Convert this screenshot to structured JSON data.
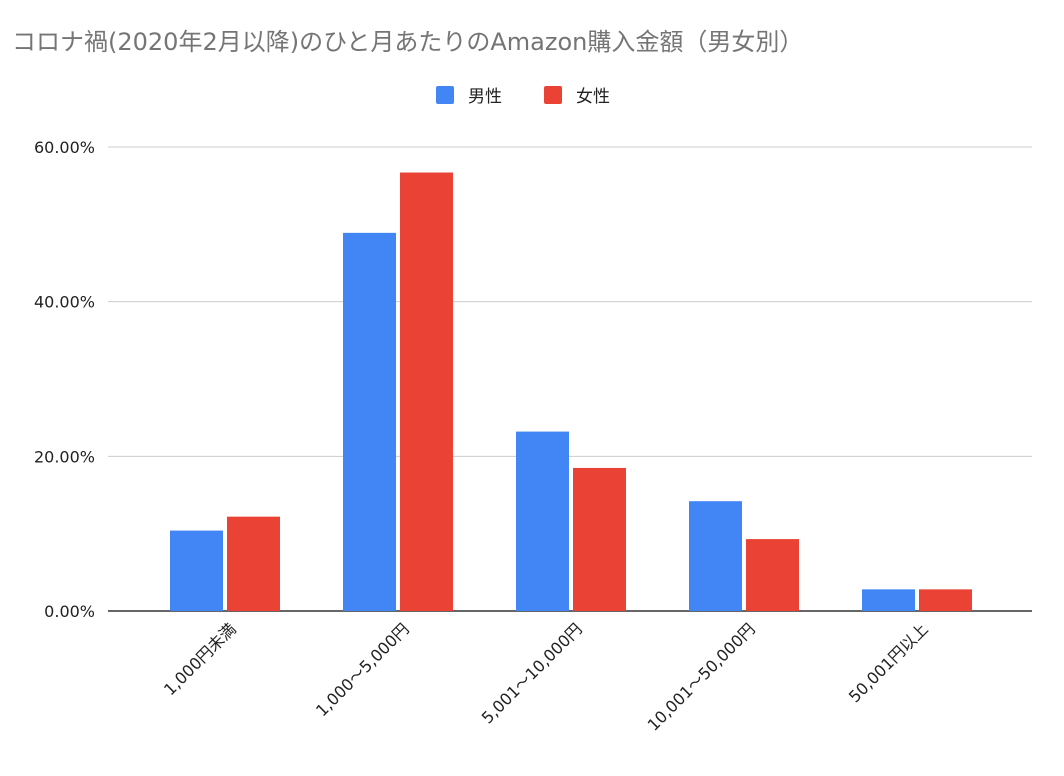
{
  "chart_data": {
    "type": "bar",
    "title": "コロナ禍(2020年2月以降)のひと月あたりのAmazon購入金額（男女別）",
    "categories": [
      "1,000円未満",
      "1,000～5,000円",
      "5,001～10,000円",
      "10,001～50,000円",
      "50,001円以上"
    ],
    "series": [
      {
        "name": "男性",
        "color": "#4285f4",
        "values": [
          10.4,
          48.9,
          23.2,
          14.2,
          2.8
        ]
      },
      {
        "name": "女性",
        "color": "#ea4335",
        "values": [
          12.2,
          56.7,
          18.5,
          9.3,
          2.8
        ]
      }
    ],
    "yticks": [
      "0.00%",
      "20.00%",
      "40.00%",
      "60.00%"
    ],
    "ylim": [
      0,
      60
    ],
    "yunit": "%",
    "grid": true,
    "legend": "top-center",
    "xlabel": "",
    "ylabel": ""
  }
}
